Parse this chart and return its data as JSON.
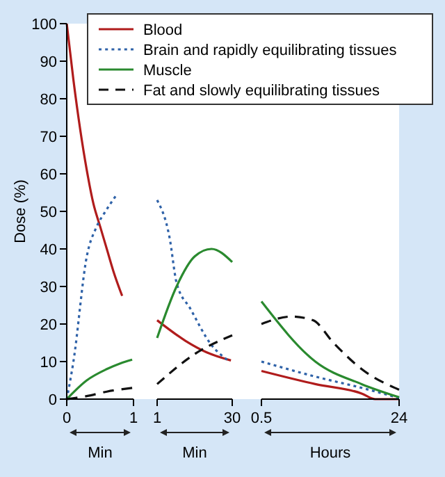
{
  "chart_data": [
    {
      "type": "line",
      "ylabel": "Dose (%)",
      "xlabel": "Min",
      "xlim": [
        0,
        1
      ],
      "xticks": [
        0,
        1
      ],
      "ylim": [
        0,
        100
      ],
      "yticks": [
        0,
        10,
        20,
        30,
        40,
        50,
        60,
        70,
        80,
        90,
        100
      ],
      "legend": "top",
      "series": [
        {
          "name": "Blood",
          "color": "#b01c1c",
          "line_style": "solid",
          "x": [
            0,
            0.1,
            0.2,
            0.3,
            0.4,
            0.5,
            0.6,
            0.7,
            0.83
          ],
          "values": [
            100,
            85,
            72,
            61,
            52,
            46,
            40,
            34,
            27.5
          ]
        },
        {
          "name": "Brain and rapidly equilibrating tissues",
          "color": "#2f62a8",
          "line_style": "dotted",
          "x": [
            0,
            0.1,
            0.3,
            0.45,
            0.58,
            0.73
          ],
          "values": [
            0,
            10,
            38,
            46,
            50,
            54
          ]
        },
        {
          "name": "Muscle",
          "color": "#2a8a2f",
          "line_style": "solid",
          "x": [
            0,
            0.3,
            0.6,
            0.8,
            0.98
          ],
          "values": [
            0,
            5,
            8,
            9.5,
            10.5
          ]
        },
        {
          "name": "Fat and slowly equilibrating tissues",
          "color": "#111111",
          "line_style": "dashed",
          "x": [
            0,
            0.3,
            0.6,
            0.98
          ],
          "values": [
            0,
            0.8,
            2,
            3
          ]
        }
      ]
    },
    {
      "type": "line",
      "xlabel": "Min",
      "xlim": [
        1,
        30
      ],
      "xticks": [
        1,
        30
      ],
      "ylim": [
        0,
        100
      ],
      "tick_labels": "x",
      "series": [
        {
          "color": "#b01c1c",
          "line_style": "solid",
          "x": [
            1,
            12,
            20,
            29.5
          ],
          "values": [
            21,
            15.5,
            12.5,
            10.3
          ]
        },
        {
          "color": "#2f62a8",
          "line_style": "dotted",
          "x": [
            1,
            5.8,
            8.5,
            13.9,
            22,
            28
          ],
          "values": [
            53,
            43,
            31,
            24,
            14.4,
            10.5
          ]
        },
        {
          "color": "#2a8a2f",
          "line_style": "solid",
          "x": [
            1,
            8.5,
            15.5,
            22,
            30
          ],
          "values": [
            16.3,
            30,
            38,
            40,
            36.5
          ]
        },
        {
          "color": "#111111",
          "line_style": "dashed",
          "x": [
            1,
            15.5,
            30
          ],
          "values": [
            4,
            12,
            17
          ]
        }
      ]
    },
    {
      "type": "line",
      "xlabel": "Hours",
      "xlim": [
        0.5,
        24
      ],
      "xticks": [
        0.5,
        24
      ],
      "ylim": [
        0,
        100
      ],
      "tick_labels": "x",
      "series": [
        {
          "color": "#b01c1c",
          "line_style": "solid",
          "x": [
            0.5,
            9.7,
            17.6,
            19.9,
            24
          ],
          "values": [
            7.5,
            4,
            1.5,
            0,
            0
          ]
        },
        {
          "color": "#2f62a8",
          "line_style": "dotted",
          "x": [
            0.5,
            9.7,
            17.6,
            24
          ],
          "values": [
            10,
            6,
            3,
            0.3
          ]
        },
        {
          "color": "#2a8a2f",
          "line_style": "solid",
          "x": [
            0.5,
            9.7,
            17.6,
            24
          ],
          "values": [
            26,
            10,
            4,
            0.5
          ]
        },
        {
          "color": "#111111",
          "line_style": "dashed",
          "x": [
            0.5,
            5.7,
            9.3,
            12.8,
            17.6,
            24
          ],
          "values": [
            20,
            22,
            21,
            15,
            8,
            2.5
          ]
        }
      ]
    }
  ]
}
